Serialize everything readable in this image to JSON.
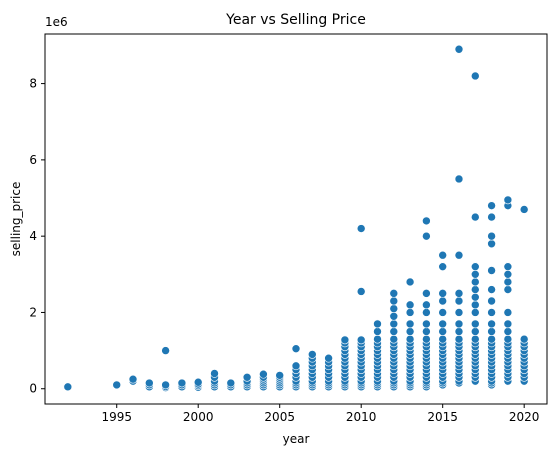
{
  "chart_data": {
    "type": "scatter",
    "title": "Year vs Selling Price",
    "xlabel": "year",
    "ylabel": "selling_price",
    "y_offset_label": "1e6",
    "xlim": [
      1990.6,
      2021.4
    ],
    "ylim": [
      -0.4,
      9.3
    ],
    "y_unit_multiplier": 1000000,
    "x_ticks": [
      1995,
      2000,
      2005,
      2010,
      2015,
      2020
    ],
    "x_tick_labels": [
      "1995",
      "2000",
      "2005",
      "2010",
      "2015",
      "2020"
    ],
    "y_ticks": [
      0,
      2,
      4,
      6,
      8
    ],
    "y_tick_labels": [
      "0",
      "2",
      "4",
      "6",
      "8"
    ],
    "grid": false,
    "legend": "none",
    "marker_color": "#1f77b4",
    "marker_edge_color": "#ffffff",
    "series_points": [
      {
        "year": 1992,
        "selling_price_millions": [
          0.05
        ]
      },
      {
        "year": 1995,
        "selling_price_millions": [
          0.1
        ]
      },
      {
        "year": 1996,
        "selling_price_millions": [
          0.2,
          0.25
        ]
      },
      {
        "year": 1997,
        "selling_price_millions": [
          0.05,
          0.1,
          0.15
        ]
      },
      {
        "year": 1998,
        "selling_price_millions": [
          0.03,
          0.06,
          0.1,
          1.0
        ]
      },
      {
        "year": 1999,
        "selling_price_millions": [
          0.05,
          0.1,
          0.15
        ]
      },
      {
        "year": 2000,
        "selling_price_millions": [
          0.04,
          0.08,
          0.12,
          0.17
        ]
      },
      {
        "year": 2001,
        "selling_price_millions": [
          0.05,
          0.1,
          0.15,
          0.2,
          0.3,
          0.4
        ]
      },
      {
        "year": 2002,
        "selling_price_millions": [
          0.05,
          0.1,
          0.15
        ]
      },
      {
        "year": 2003,
        "selling_price_millions": [
          0.05,
          0.1,
          0.15,
          0.2,
          0.3
        ]
      },
      {
        "year": 2004,
        "selling_price_millions": [
          0.05,
          0.1,
          0.15,
          0.2,
          0.25,
          0.3,
          0.38
        ]
      },
      {
        "year": 2005,
        "selling_price_millions": [
          0.05,
          0.1,
          0.15,
          0.2,
          0.25,
          0.3,
          0.35
        ]
      },
      {
        "year": 2006,
        "selling_price_millions": [
          0.05,
          0.1,
          0.15,
          0.2,
          0.3,
          0.4,
          0.5,
          0.6,
          1.05
        ]
      },
      {
        "year": 2007,
        "selling_price_millions": [
          0.05,
          0.1,
          0.15,
          0.2,
          0.3,
          0.4,
          0.5,
          0.6,
          0.7,
          0.8,
          0.9
        ]
      },
      {
        "year": 2008,
        "selling_price_millions": [
          0.05,
          0.1,
          0.15,
          0.2,
          0.3,
          0.4,
          0.5,
          0.6,
          0.7,
          0.8
        ]
      },
      {
        "year": 2009,
        "selling_price_millions": [
          0.05,
          0.1,
          0.15,
          0.2,
          0.3,
          0.4,
          0.5,
          0.6,
          0.7,
          0.8,
          0.9,
          1.0,
          1.1,
          1.2,
          1.28
        ]
      },
      {
        "year": 2010,
        "selling_price_millions": [
          0.05,
          0.1,
          0.15,
          0.2,
          0.3,
          0.4,
          0.5,
          0.6,
          0.7,
          0.8,
          0.9,
          1.0,
          1.1,
          1.2,
          1.28,
          2.55,
          4.2
        ]
      },
      {
        "year": 2011,
        "selling_price_millions": [
          0.05,
          0.1,
          0.15,
          0.2,
          0.3,
          0.4,
          0.5,
          0.6,
          0.7,
          0.8,
          0.9,
          1.0,
          1.1,
          1.2,
          1.3,
          1.5,
          1.7
        ]
      },
      {
        "year": 2012,
        "selling_price_millions": [
          0.05,
          0.1,
          0.15,
          0.2,
          0.3,
          0.4,
          0.5,
          0.6,
          0.7,
          0.8,
          0.9,
          1.0,
          1.1,
          1.2,
          1.3,
          1.5,
          1.7,
          1.9,
          2.1,
          2.3,
          2.5
        ]
      },
      {
        "year": 2013,
        "selling_price_millions": [
          0.05,
          0.1,
          0.15,
          0.2,
          0.3,
          0.4,
          0.5,
          0.6,
          0.7,
          0.8,
          0.9,
          1.0,
          1.1,
          1.2,
          1.3,
          1.5,
          1.7,
          2.0,
          2.2,
          2.8
        ]
      },
      {
        "year": 2014,
        "selling_price_millions": [
          0.05,
          0.1,
          0.15,
          0.2,
          0.3,
          0.4,
          0.5,
          0.6,
          0.7,
          0.8,
          0.9,
          1.0,
          1.1,
          1.2,
          1.3,
          1.5,
          1.7,
          2.0,
          2.2,
          2.5,
          4.0,
          4.4
        ]
      },
      {
        "year": 2015,
        "selling_price_millions": [
          0.1,
          0.15,
          0.2,
          0.3,
          0.4,
          0.5,
          0.6,
          0.7,
          0.8,
          0.9,
          1.0,
          1.1,
          1.2,
          1.3,
          1.5,
          1.7,
          2.0,
          2.3,
          2.5,
          3.2,
          3.5
        ]
      },
      {
        "year": 2016,
        "selling_price_millions": [
          0.15,
          0.2,
          0.3,
          0.4,
          0.5,
          0.6,
          0.7,
          0.8,
          0.9,
          1.0,
          1.1,
          1.2,
          1.3,
          1.5,
          1.7,
          2.0,
          2.3,
          2.5,
          3.5,
          5.5,
          8.9
        ]
      },
      {
        "year": 2017,
        "selling_price_millions": [
          0.2,
          0.3,
          0.4,
          0.5,
          0.6,
          0.7,
          0.8,
          0.9,
          1.0,
          1.1,
          1.2,
          1.3,
          1.5,
          1.7,
          2.0,
          2.2,
          2.4,
          2.6,
          2.8,
          3.0,
          3.2,
          4.5,
          8.2
        ]
      },
      {
        "year": 2018,
        "selling_price_millions": [
          0.1,
          0.15,
          0.2,
          0.3,
          0.4,
          0.5,
          0.6,
          0.7,
          0.8,
          0.9,
          1.0,
          1.1,
          1.2,
          1.3,
          1.5,
          1.7,
          2.0,
          2.3,
          2.6,
          3.1,
          3.8,
          4.0,
          4.5,
          4.8
        ]
      },
      {
        "year": 2019,
        "selling_price_millions": [
          0.2,
          0.3,
          0.4,
          0.5,
          0.6,
          0.7,
          0.8,
          0.9,
          1.0,
          1.1,
          1.2,
          1.3,
          1.5,
          1.7,
          2.0,
          2.6,
          2.8,
          3.0,
          3.2,
          4.8,
          4.95
        ]
      },
      {
        "year": 2020,
        "selling_price_millions": [
          0.2,
          0.3,
          0.4,
          0.5,
          0.6,
          0.7,
          0.8,
          0.9,
          1.0,
          1.1,
          1.2,
          1.3,
          4.7
        ]
      }
    ]
  }
}
